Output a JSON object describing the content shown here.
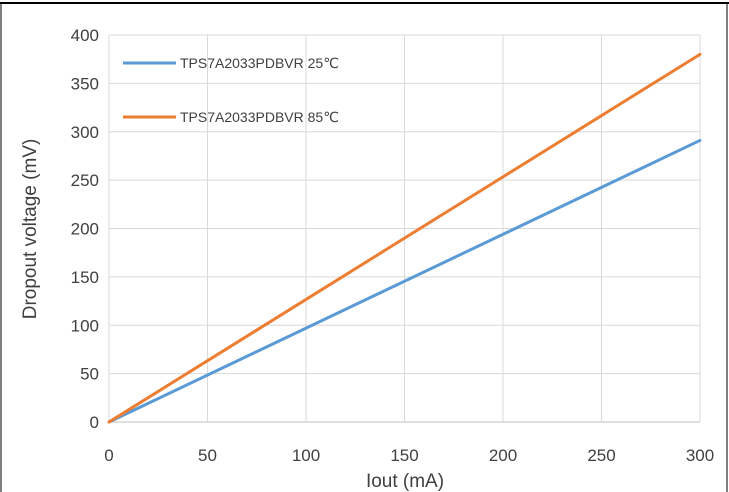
{
  "chart_data": {
    "type": "line",
    "title": "",
    "xlabel": "Iout (mA)",
    "ylabel": "Dropout voltage (mV)",
    "xlim": [
      0,
      300
    ],
    "ylim": [
      0,
      400
    ],
    "xticks": [
      "0",
      "50",
      "100",
      "150",
      "200",
      "250",
      "300"
    ],
    "yticks": [
      "0",
      "50",
      "100",
      "150",
      "200",
      "250",
      "300",
      "350",
      "400"
    ],
    "grid": true,
    "legend_position": "top-left",
    "series": [
      {
        "name": "TPS7A2033PDBVR  25℃",
        "color": "#5b9bd5",
        "x": [
          0,
          300
        ],
        "y": [
          0,
          291
        ]
      },
      {
        "name": "TPS7A2033PDBVR  85℃",
        "color": "#ed7d31",
        "x": [
          0,
          300
        ],
        "y": [
          0,
          380
        ]
      }
    ]
  }
}
